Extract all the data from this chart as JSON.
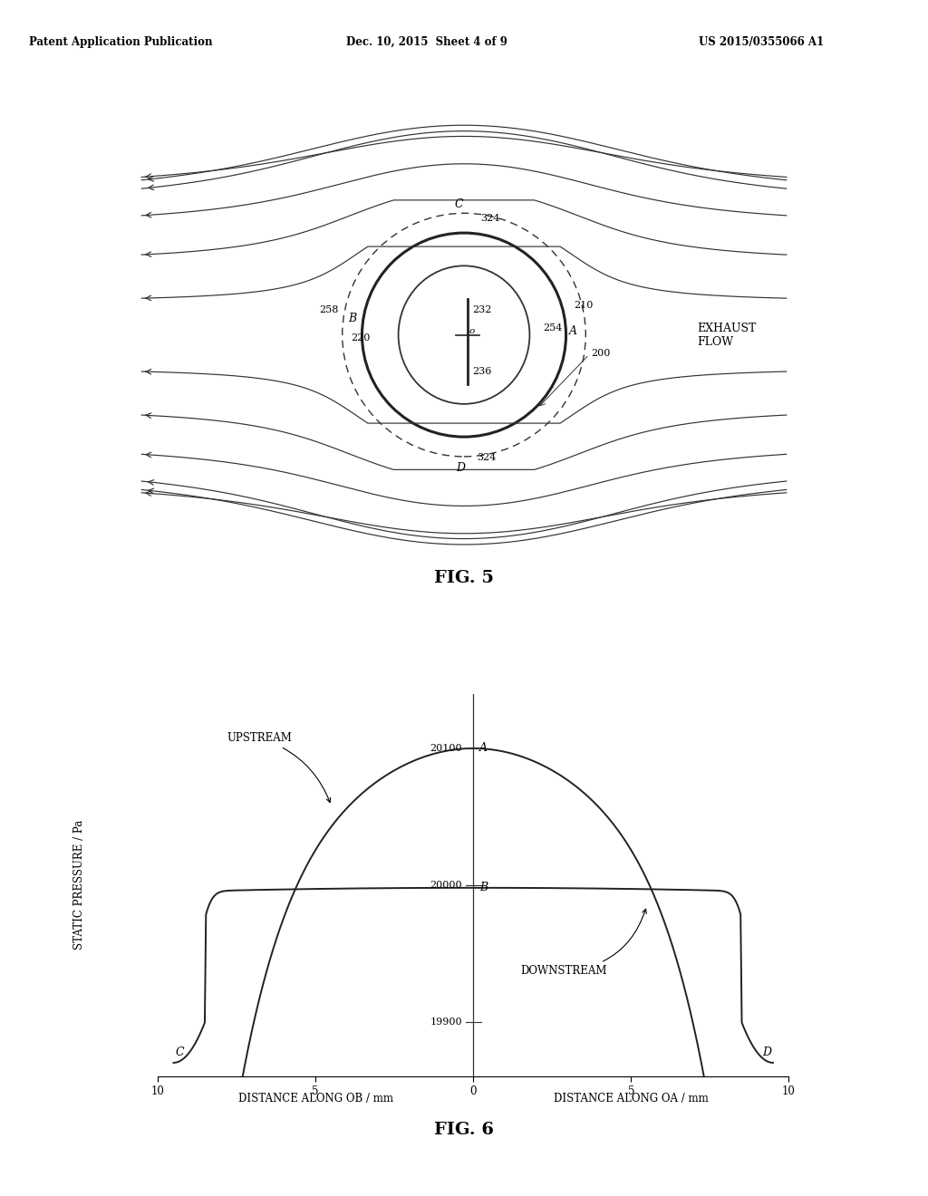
{
  "bg_color": "#ffffff",
  "header_left": "Patent Application Publication",
  "header_mid": "Dec. 10, 2015  Sheet 4 of 9",
  "header_right": "US 2015/0355066 A1",
  "fig5_title": "FIG. 5",
  "fig6_title": "FIG. 6",
  "exhaust_flow_label": "EXHAUST\nFLOW",
  "graph_ylabel": "STATIC PRESSURE / Pa",
  "graph_xlabel_left": "DISTANCE ALONG OB / mm",
  "graph_xlabel_right": "DISTANCE ALONG OA / mm",
  "upstream_label": "UPSTREAM",
  "downstream_label": "DOWNSTREAM"
}
